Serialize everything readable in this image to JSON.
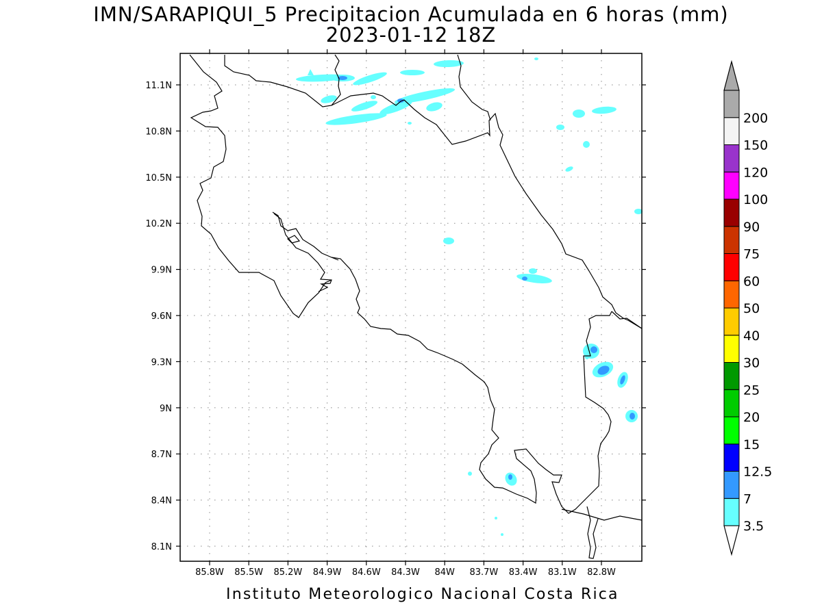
{
  "header": {
    "title_line1": "IMN/SARAPIQUI_5 Precipitacion Acumulada en 6 horas (mm)",
    "title_line2": "2023-01-12 18Z"
  },
  "footer": {
    "credit": "Instituto Meteorologico Nacional Costa Rica"
  },
  "map": {
    "lat_labels": [
      "11.1N",
      "10.8N",
      "10.5N",
      "10.2N",
      "9.9N",
      "9.6N",
      "9.3N",
      "9N",
      "8.7N",
      "8.4N",
      "8.1N"
    ],
    "lon_labels": [
      "85.8W",
      "85.5W",
      "85.2W",
      "84.9W",
      "84.6W",
      "84.3W",
      "84W",
      "83.7W",
      "83.4W",
      "83.1W",
      "82.8W"
    ],
    "grid": "dotted",
    "coastline_color": "#000000"
  },
  "colorbar": {
    "labels": [
      "3.5",
      "7",
      "12.5",
      "15",
      "20",
      "25",
      "30",
      "40",
      "50",
      "60",
      "75",
      "90",
      "100",
      "120",
      "150",
      "200"
    ],
    "colors": [
      "#66ffff",
      "#3399ff",
      "#0000ff",
      "#00ff00",
      "#00cc00",
      "#009900",
      "#ffff00",
      "#ffcc00",
      "#ff6600",
      "#ff0000",
      "#cc3300",
      "#990000",
      "#ff00ff",
      "#9933cc",
      "#f4f4f4",
      "#aaaaaa"
    ],
    "lower_arrow_color": "#ffffff",
    "upper_arrow_color": "#aaaaaa"
  }
}
